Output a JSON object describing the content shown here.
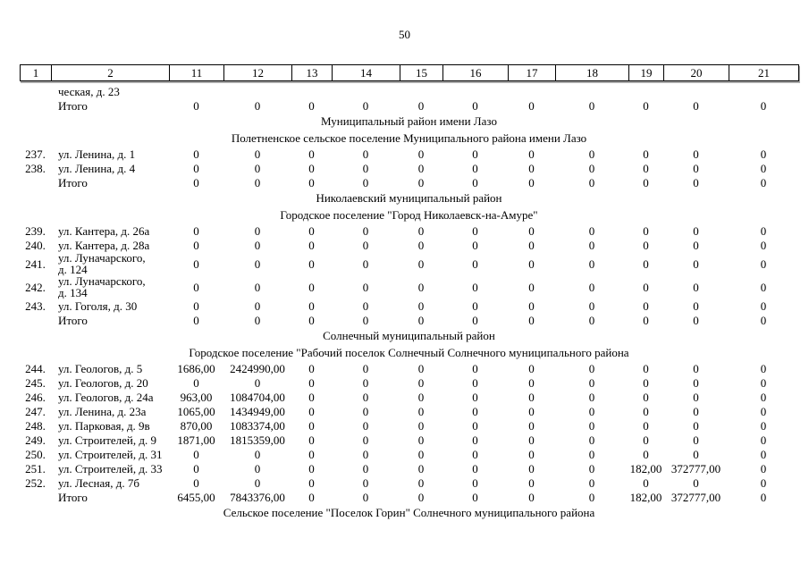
{
  "page_number": "50",
  "table": {
    "header": [
      "1",
      "2",
      "11",
      "12",
      "13",
      "14",
      "15",
      "16",
      "17",
      "18",
      "19",
      "20",
      "21"
    ],
    "rows": [
      {
        "type": "data",
        "num": "",
        "address": "ческая, д. 23",
        "values": [
          "",
          "",
          "",
          "",
          "",
          "",
          "",
          "",
          "",
          "",
          ""
        ]
      },
      {
        "type": "data",
        "num": "",
        "address": "Итого",
        "values": [
          "0",
          "0",
          "0",
          "0",
          "0",
          "0",
          "0",
          "0",
          "0",
          "0",
          "0"
        ]
      },
      {
        "type": "section",
        "text": "Муниципальный район имени Лазо"
      },
      {
        "type": "section",
        "text": "Полетненское сельское поселение Муниципального района имени Лазо"
      },
      {
        "type": "data",
        "num": "237.",
        "address": "ул. Ленина, д. 1",
        "values": [
          "0",
          "0",
          "0",
          "0",
          "0",
          "0",
          "0",
          "0",
          "0",
          "0",
          "0"
        ]
      },
      {
        "type": "data",
        "num": "238.",
        "address": "ул. Ленина, д. 4",
        "values": [
          "0",
          "0",
          "0",
          "0",
          "0",
          "0",
          "0",
          "0",
          "0",
          "0",
          "0"
        ]
      },
      {
        "type": "data",
        "num": "",
        "address": "Итого",
        "values": [
          "0",
          "0",
          "0",
          "0",
          "0",
          "0",
          "0",
          "0",
          "0",
          "0",
          "0"
        ]
      },
      {
        "type": "section",
        "text": "Николаевский муниципальный район"
      },
      {
        "type": "section",
        "text": "Городское поселение \"Город Николаевск-на-Амуре\""
      },
      {
        "type": "data",
        "num": "239.",
        "address": "ул. Кантера, д. 26а",
        "values": [
          "0",
          "0",
          "0",
          "0",
          "0",
          "0",
          "0",
          "0",
          "0",
          "0",
          "0"
        ]
      },
      {
        "type": "data",
        "num": "240.",
        "address": "ул. Кантера, д. 28а",
        "values": [
          "0",
          "0",
          "0",
          "0",
          "0",
          "0",
          "0",
          "0",
          "0",
          "0",
          "0"
        ]
      },
      {
        "type": "data",
        "num": "241.",
        "address": "ул. Луначарского,\nд. 124",
        "values": [
          "0",
          "0",
          "0",
          "0",
          "0",
          "0",
          "0",
          "0",
          "0",
          "0",
          "0"
        ]
      },
      {
        "type": "data",
        "num": "242.",
        "address": "ул. Луначарского,\nд. 134",
        "values": [
          "0",
          "0",
          "0",
          "0",
          "0",
          "0",
          "0",
          "0",
          "0",
          "0",
          "0"
        ]
      },
      {
        "type": "data",
        "num": "243.",
        "address": "ул. Гоголя, д. 30",
        "values": [
          "0",
          "0",
          "0",
          "0",
          "0",
          "0",
          "0",
          "0",
          "0",
          "0",
          "0"
        ]
      },
      {
        "type": "data",
        "num": "",
        "address": "Итого",
        "values": [
          "0",
          "0",
          "0",
          "0",
          "0",
          "0",
          "0",
          "0",
          "0",
          "0",
          "0"
        ]
      },
      {
        "type": "section",
        "text": "Солнечный муниципальный район"
      },
      {
        "type": "section",
        "text": "Городское поселение \"Рабочий поселок Солнечный Солнечного муниципального района"
      },
      {
        "type": "data",
        "num": "244.",
        "address": "ул. Геологов, д. 5",
        "values": [
          "1686,00",
          "2424990,00",
          "0",
          "0",
          "0",
          "0",
          "0",
          "0",
          "0",
          "0",
          "0"
        ]
      },
      {
        "type": "data",
        "num": "245.",
        "address": "ул. Геологов, д. 20",
        "values": [
          "0",
          "0",
          "0",
          "0",
          "0",
          "0",
          "0",
          "0",
          "0",
          "0",
          "0"
        ]
      },
      {
        "type": "data",
        "num": "246.",
        "address": "ул. Геологов, д. 24а",
        "values": [
          "963,00",
          "1084704,00",
          "0",
          "0",
          "0",
          "0",
          "0",
          "0",
          "0",
          "0",
          "0"
        ]
      },
      {
        "type": "data",
        "num": "247.",
        "address": "ул. Ленина, д. 23а",
        "values": [
          "1065,00",
          "1434949,00",
          "0",
          "0",
          "0",
          "0",
          "0",
          "0",
          "0",
          "0",
          "0"
        ]
      },
      {
        "type": "data",
        "num": "248.",
        "address": "ул. Парковая, д. 9в",
        "values": [
          "870,00",
          "1083374,00",
          "0",
          "0",
          "0",
          "0",
          "0",
          "0",
          "0",
          "0",
          "0"
        ]
      },
      {
        "type": "data",
        "num": "249.",
        "address": "ул. Строителей, д. 9",
        "values": [
          "1871,00",
          "1815359,00",
          "0",
          "0",
          "0",
          "0",
          "0",
          "0",
          "0",
          "0",
          "0"
        ]
      },
      {
        "type": "data",
        "num": "250.",
        "address": "ул. Строителей, д. 31",
        "values": [
          "0",
          "0",
          "0",
          "0",
          "0",
          "0",
          "0",
          "0",
          "0",
          "0",
          "0"
        ]
      },
      {
        "type": "data",
        "num": "251.",
        "address": "ул. Строителей, д. 33",
        "values": [
          "0",
          "0",
          "0",
          "0",
          "0",
          "0",
          "0",
          "0",
          "182,00",
          "372777,00",
          "0"
        ]
      },
      {
        "type": "data",
        "num": "252.",
        "address": "ул. Лесная, д. 7б",
        "values": [
          "0",
          "0",
          "0",
          "0",
          "0",
          "0",
          "0",
          "0",
          "0",
          "0",
          "0"
        ]
      },
      {
        "type": "data",
        "num": "",
        "address": "Итого",
        "values": [
          "6455,00",
          "7843376,00",
          "0",
          "0",
          "0",
          "0",
          "0",
          "0",
          "182,00",
          "372777,00",
          "0"
        ]
      },
      {
        "type": "section",
        "text": "Сельское поселение \"Поселок Горин\" Солнечного муниципального района"
      }
    ]
  }
}
